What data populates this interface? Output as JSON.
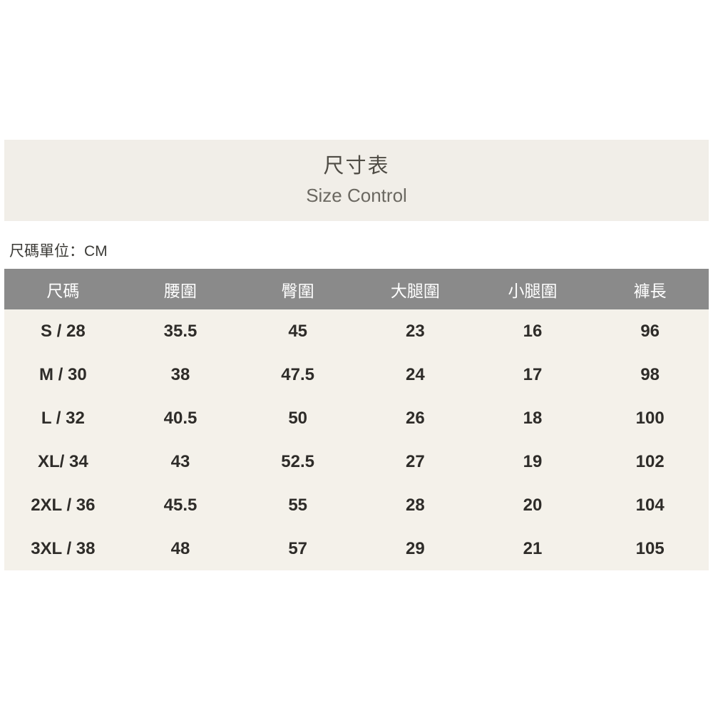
{
  "header_band": {
    "title": "尺寸表",
    "subtitle": "Size Control",
    "background": "#f1eee8"
  },
  "unit_note": "尺碼單位：CM",
  "size_table": {
    "columns": [
      "尺碼",
      "腰圍",
      "臀圍",
      "大腿圍",
      "小腿圍",
      "褲長"
    ],
    "rows": [
      {
        "label": "S / 28",
        "values": [
          "35.5",
          "45",
          "23",
          "16",
          "96"
        ]
      },
      {
        "label": "M / 30",
        "values": [
          "38",
          "47.5",
          "24",
          "17",
          "98"
        ]
      },
      {
        "label": "L / 32",
        "values": [
          "40.5",
          "50",
          "26",
          "18",
          "100"
        ]
      },
      {
        "label": "XL/ 34",
        "values": [
          "43",
          "52.5",
          "27",
          "19",
          "102"
        ]
      },
      {
        "label": "2XL / 36",
        "values": [
          "45.5",
          "55",
          "28",
          "20",
          "104"
        ]
      },
      {
        "label": "3XL / 38",
        "values": [
          "48",
          "57",
          "29",
          "21",
          "105"
        ]
      }
    ],
    "colors": {
      "header_row_background": "#8a8a8a",
      "header_row_text": "#ffffff",
      "body_background": "#f4f1ea",
      "body_text": "#2e2c29"
    }
  }
}
